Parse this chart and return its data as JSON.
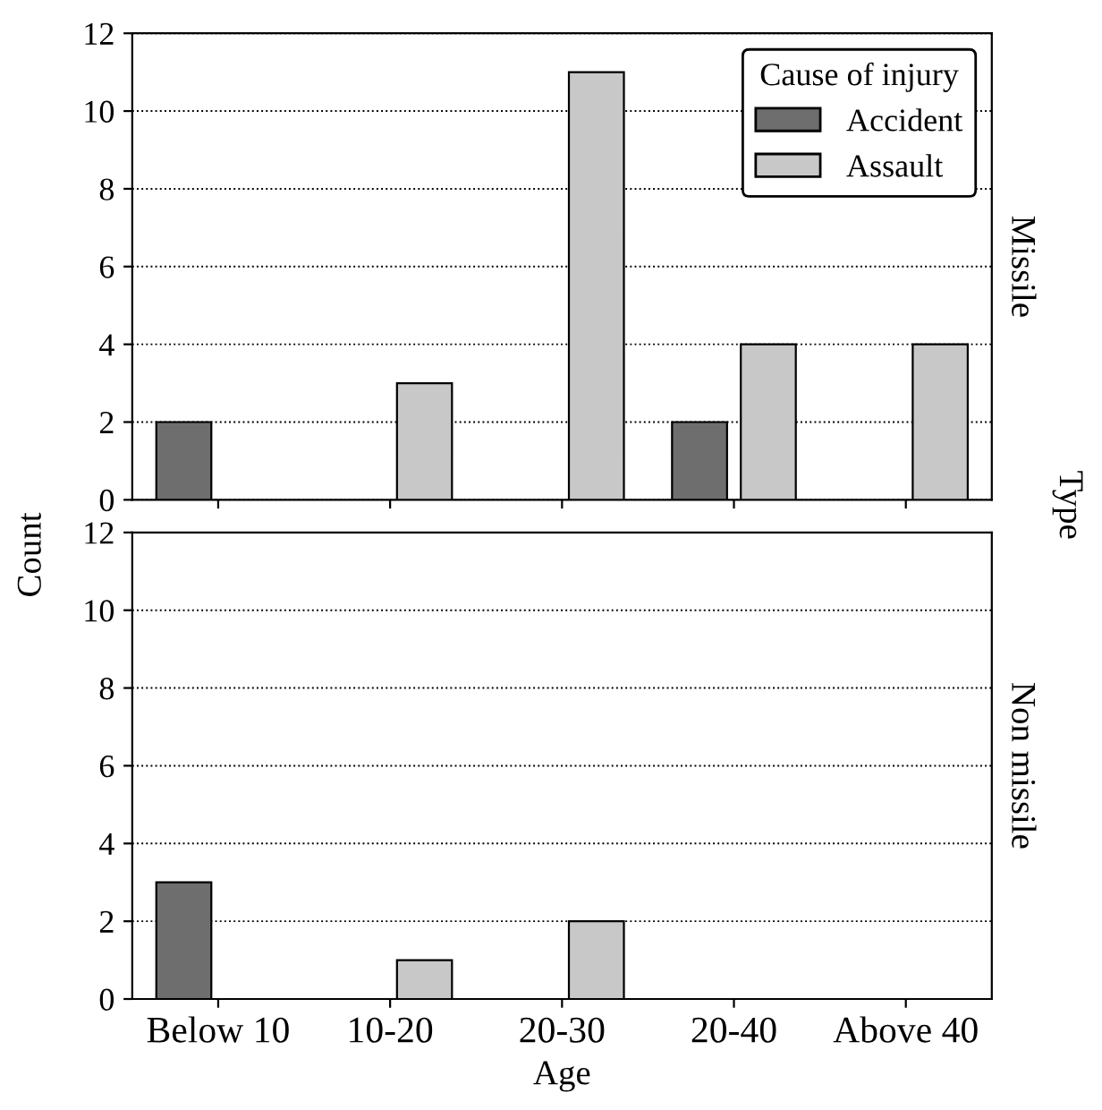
{
  "chart_data": [
    {
      "type": "bar",
      "categories": [
        null,
        null,
        null,
        null,
        null
      ],
      "ylabel": "Count",
      "legend_title": "Cause of injury",
      "legend": "top right",
      "grid": "y",
      "ylim": [
        0,
        12
      ],
      "yticks": [
        0,
        2,
        4,
        6,
        8,
        10,
        12
      ],
      "tick_labels": "y",
      "annotations": [
        "Missile",
        "Type"
      ],
      "series": [
        {
          "name": "Accident",
          "color": "#6e6e6e",
          "values": [
            2,
            null,
            null,
            2,
            null
          ]
        },
        {
          "name": "Assault",
          "color": "#c8c8c8",
          "values": [
            null,
            3,
            11,
            4,
            4
          ]
        }
      ]
    },
    {
      "type": "bar",
      "categories": [
        "Below 10",
        "10-20",
        "20-30",
        "20-40",
        "Above 40"
      ],
      "xlabel": "Age",
      "grid": "y",
      "ylim": [
        0,
        12
      ],
      "yticks": [
        0,
        2,
        4,
        6,
        8,
        10,
        12
      ],
      "annotations": [
        "Non missile"
      ],
      "series": [
        {
          "color": "#6e6e6e",
          "values": [
            3,
            null,
            null,
            null,
            null
          ]
        },
        {
          "color": "#c8c8c8",
          "values": [
            null,
            1,
            2,
            null,
            null
          ]
        }
      ]
    }
  ]
}
